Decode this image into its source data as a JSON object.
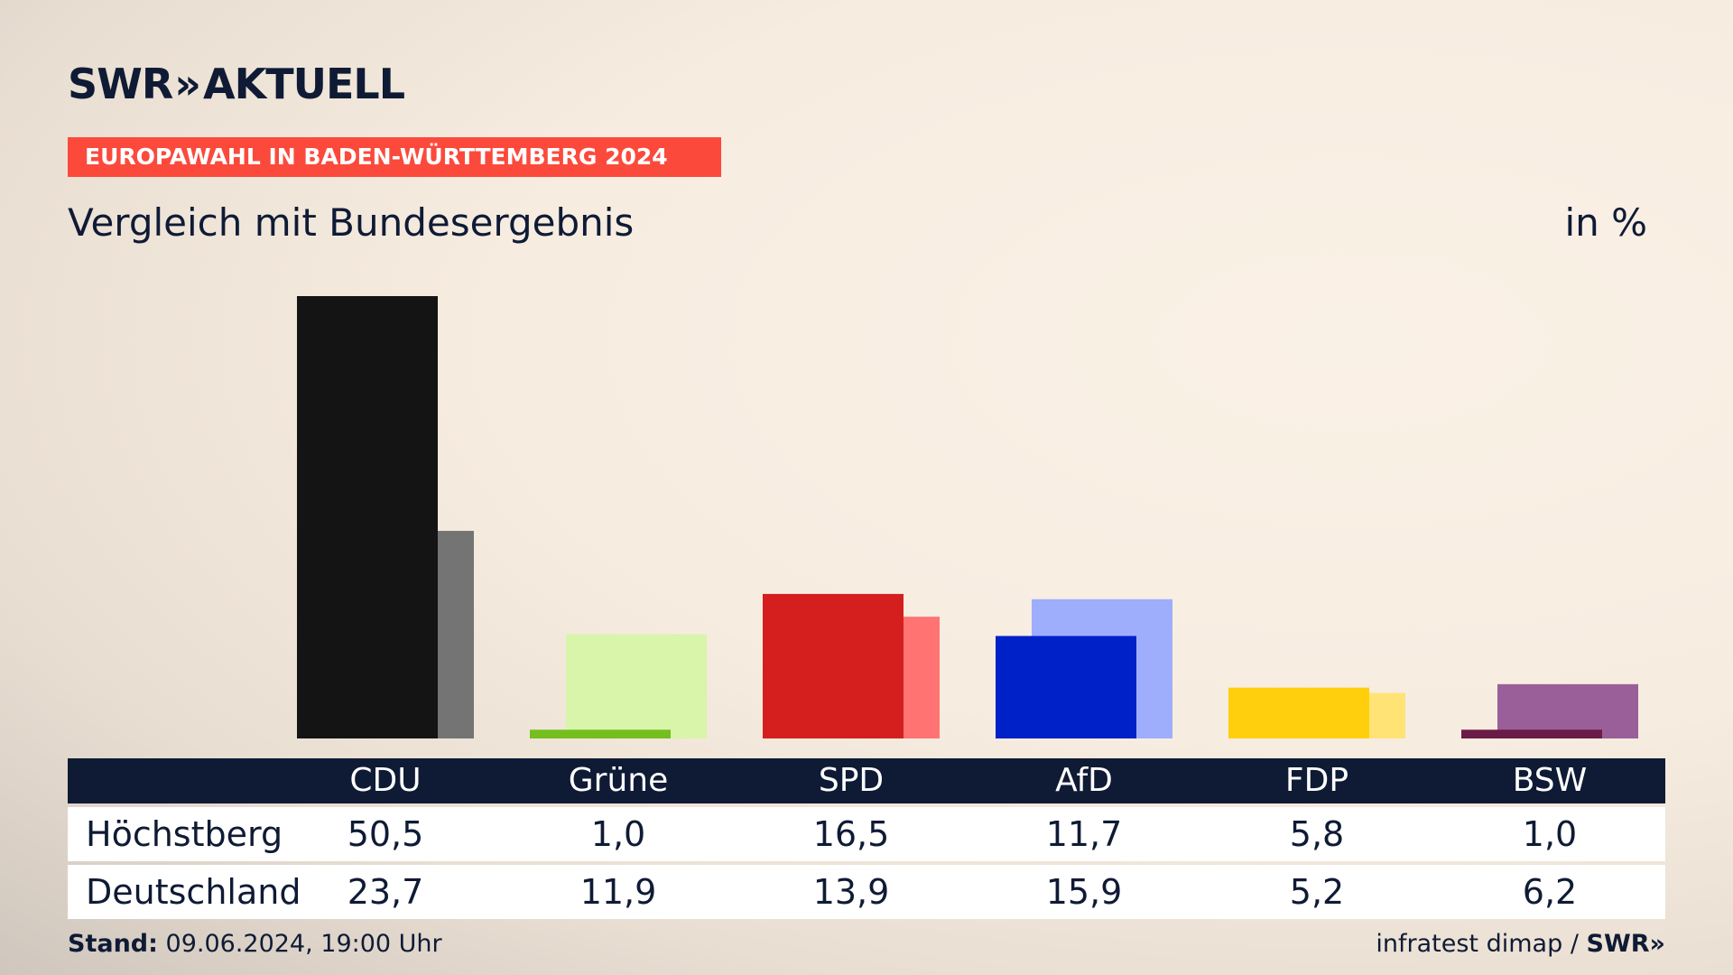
{
  "header": {
    "logo_text": "SWR",
    "logo_chevrons": "»",
    "logo_sub": "AKTUELL",
    "banner": "EUROPAWAHL IN BADEN-WÜRTTEMBERG 2024",
    "subtitle": "Vergleich mit Bundesergebnis",
    "unit": "in %"
  },
  "chart_data": {
    "type": "bar",
    "title": "Vergleich mit Bundesergebnis",
    "ylabel": "in %",
    "categories": [
      "CDU",
      "Grüne",
      "SPD",
      "AfD",
      "FDP",
      "BSW"
    ],
    "series": [
      {
        "name": "Höchstberg",
        "values": [
          50.5,
          1.0,
          16.5,
          11.7,
          5.8,
          1.0
        ]
      },
      {
        "name": "Deutschland",
        "values": [
          23.7,
          11.9,
          13.9,
          15.9,
          5.2,
          6.2
        ]
      }
    ],
    "colors_primary": [
      "#141414",
      "#74be1e",
      "#d51f1f",
      "#0021c8",
      "#ffcf0d",
      "#6b1b47"
    ],
    "colors_secondary": [
      "#747474",
      "#d8f5aa",
      "#ff7373",
      "#9eaefd",
      "#ffe375",
      "#9a5f98"
    ],
    "ylim": [
      0,
      50.5
    ],
    "grid": false
  },
  "table": {
    "columns": [
      "CDU",
      "Grüne",
      "SPD",
      "AfD",
      "FDP",
      "BSW"
    ],
    "rows": [
      {
        "label": "Höchstberg",
        "values": [
          "50,5",
          "1,0",
          "16,5",
          "11,7",
          "5,8",
          "1,0"
        ]
      },
      {
        "label": "Deutschland",
        "values": [
          "23,7",
          "11,9",
          "13,9",
          "15,9",
          "5,2",
          "6,2"
        ]
      }
    ]
  },
  "footer": {
    "stand_label": "Stand:",
    "stand_value": "09.06.2024, 19:00 Uhr",
    "source": "infratest dimap",
    "separator": "/",
    "source_logo": "SWR»"
  }
}
